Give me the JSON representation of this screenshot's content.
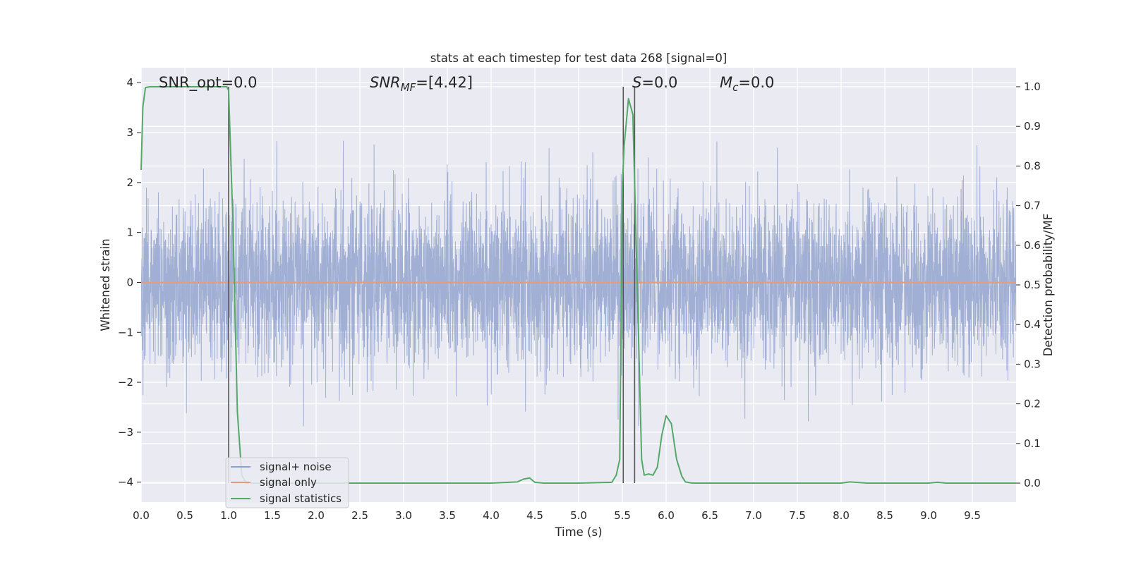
{
  "chart_data": {
    "type": "line",
    "title": "stats at each timestep for test data 268 [signal=0]",
    "xlabel": "Time (s)",
    "ylabel": "Whitened strain",
    "ylabel_right": "Detection probability/MF",
    "xlim": [
      0.0,
      10.0
    ],
    "ylim": [
      -4.4,
      4.3
    ],
    "ylim_right": [
      -0.048,
      1.048
    ],
    "grid": true,
    "x_ticks": [
      "0.0",
      "0.5",
      "1.0",
      "1.5",
      "2.0",
      "2.5",
      "3.0",
      "3.5",
      "4.0",
      "4.5",
      "5.0",
      "5.5",
      "6.0",
      "6.5",
      "7.0",
      "7.5",
      "8.0",
      "8.5",
      "9.0",
      "9.5"
    ],
    "y_ticks": [
      "−4",
      "−3",
      "−2",
      "−1",
      "0",
      "1",
      "2",
      "3",
      "4"
    ],
    "y_ticks_right": [
      "0.0",
      "0.1",
      "0.2",
      "0.3",
      "0.4",
      "0.5",
      "0.6",
      "0.7",
      "0.8",
      "0.9",
      "1.0"
    ],
    "annotations": {
      "snr_opt": "SNR_opt=0.0",
      "snr_mf_base": "SNR",
      "snr_mf_sub": "MF",
      "snr_mf_rest": "=[4.42]",
      "s_label": "S",
      "s_rest": "=0.0",
      "mc_base": "M",
      "mc_sub": "c",
      "mc_rest": "=0.0"
    },
    "vlines": [
      1.0,
      5.51,
      5.64
    ],
    "legend": {
      "placement": "lower-left",
      "entries": [
        {
          "label": "signal+ noise",
          "color": "#8da0cb"
        },
        {
          "label": "signal only",
          "color": "#e39c7c"
        },
        {
          "label": "signal statistics",
          "color": "#55a868"
        }
      ]
    },
    "series": [
      {
        "name": "signal+ noise",
        "color": "#8da0cb",
        "description_kind": "noise",
        "std": 0.8,
        "sample_rate": 2048,
        "seed": 268
      },
      {
        "name": "signal only",
        "color": "#e39c7c",
        "x": [
          0.0,
          10.0
        ],
        "y": [
          0.0,
          0.0
        ]
      },
      {
        "name": "signal statistics",
        "color": "#55a868",
        "axis": "right",
        "x": [
          0.0,
          0.02,
          0.05,
          0.1,
          0.2,
          0.5,
          0.9,
          0.98,
          1.0,
          1.05,
          1.1,
          1.15,
          1.2,
          1.5,
          2.0,
          3.0,
          4.0,
          4.3,
          4.37,
          4.44,
          4.5,
          4.6,
          5.0,
          5.38,
          5.43,
          5.47,
          5.5,
          5.52,
          5.57,
          5.62,
          5.67,
          5.72,
          5.75,
          5.8,
          5.85,
          5.9,
          5.95,
          6.0,
          6.06,
          6.12,
          6.18,
          6.22,
          6.3,
          7.0,
          8.0,
          8.1,
          8.3,
          9.0,
          9.1,
          9.2,
          10.0
        ],
        "y": [
          0.79,
          0.95,
          0.998,
          1.0,
          1.0,
          1.0,
          1.0,
          1.0,
          0.99,
          0.65,
          0.18,
          0.02,
          0.0,
          0.0,
          0.0,
          0.0,
          0.0,
          0.003,
          0.01,
          0.013,
          0.002,
          0.0,
          0.0,
          0.002,
          0.02,
          0.06,
          0.75,
          0.85,
          0.97,
          0.93,
          0.5,
          0.06,
          0.02,
          0.023,
          0.02,
          0.04,
          0.12,
          0.17,
          0.15,
          0.06,
          0.017,
          0.003,
          0.0,
          0.0,
          0.0,
          0.003,
          0.0,
          0.0,
          0.002,
          0.0,
          0.0
        ]
      }
    ]
  }
}
